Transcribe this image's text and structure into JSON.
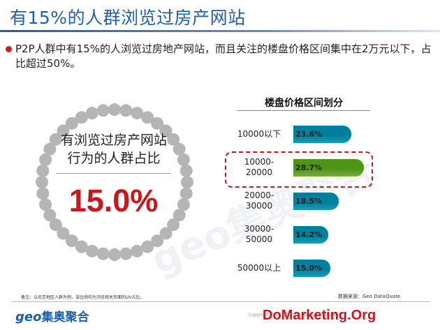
{
  "title": "有15%的人群浏览过房产网站",
  "bullet": "P2P人群中有15%的人浏览过房地产网站，而且关注的楼盘价格区间集中在2万元以下，占比超过50%。",
  "ring": {
    "line1": "有浏览过房产网站",
    "line2": "行为的人群占比",
    "value": "15.0%"
  },
  "colors": {
    "title": "#1f5fa8",
    "bar_default": "#1bb3c8",
    "bar_highlight": "#8bc34a",
    "accent_red": "#c8181e"
  },
  "chart_data": {
    "type": "bar",
    "orientation": "horizontal",
    "title": "楼盘价格区间划分",
    "categories": [
      [
        "10000以下"
      ],
      [
        "10000-",
        "20000"
      ],
      [
        "20000-",
        "30000"
      ],
      [
        "30000-",
        "50000"
      ],
      [
        "50000以上"
      ]
    ],
    "values": [
      23.6,
      28.7,
      18.5,
      14.2,
      15.0
    ],
    "value_labels": [
      "23.6%",
      "28.7%",
      "18.5%",
      "14.2%",
      "15.0%"
    ],
    "highlight_index": 1,
    "xlim": [
      0,
      30
    ]
  },
  "footnote": "备注：以北京地区人群为例，该比例均为浏览相关页面的UV占比。",
  "source": "数据来源：Geo DataQuate",
  "logo": {
    "geo": "geo",
    "name": "集奥聚合"
  },
  "copyright": "Copyright 2015 GEO Ltd. All rights reserved",
  "watermark": "DoMarketing.Org",
  "bg_watermark": "geo集奥聚合"
}
